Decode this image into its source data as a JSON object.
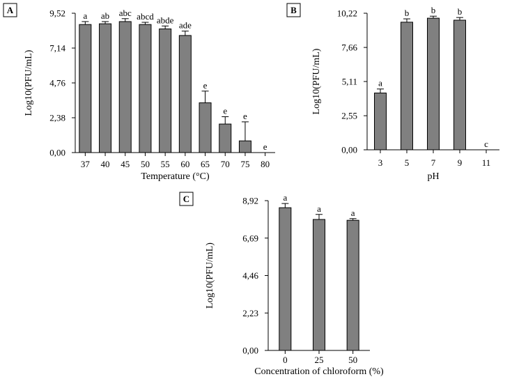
{
  "colors": {
    "bar_fill": "#808080",
    "axis": "#000000",
    "background": "#ffffff"
  },
  "chart_data": [
    {
      "panel": "A",
      "type": "bar",
      "title": "",
      "xlabel": "Temperature (°C)",
      "ylabel": "Log10(PFU/mL)",
      "ylim": [
        0,
        9.52
      ],
      "yticks": [
        "0,00",
        "2,38",
        "4,76",
        "7,14",
        "9,52"
      ],
      "ytick_values": [
        0,
        2.38,
        4.76,
        7.14,
        9.52
      ],
      "categories": [
        "37",
        "40",
        "45",
        "50",
        "55",
        "60",
        "65",
        "70",
        "75",
        "80"
      ],
      "values": [
        8.75,
        8.8,
        8.95,
        8.75,
        8.45,
        8.0,
        3.4,
        1.95,
        0.8,
        0.0
      ],
      "errors": [
        0.2,
        0.15,
        0.2,
        0.15,
        0.2,
        0.3,
        0.8,
        0.5,
        1.3,
        0.0
      ],
      "letters": [
        "a",
        "ab",
        "abc",
        "abcd",
        "abde",
        "ade",
        "e",
        "e",
        "e",
        "e"
      ]
    },
    {
      "panel": "B",
      "type": "bar",
      "title": "",
      "xlabel": "pH",
      "ylabel": "Log10(PFU/mL)",
      "ylim": [
        0,
        10.22
      ],
      "yticks": [
        "0,00",
        "2,55",
        "5,11",
        "7,66",
        "10,22"
      ],
      "ytick_values": [
        0,
        2.55,
        5.11,
        7.66,
        10.22
      ],
      "categories": [
        "3",
        "5",
        "7",
        "9",
        "11"
      ],
      "values": [
        4.25,
        9.55,
        9.85,
        9.7,
        0.0
      ],
      "errors": [
        0.3,
        0.25,
        0.15,
        0.2,
        0.0
      ],
      "letters": [
        "a",
        "b",
        "b",
        "b",
        "c"
      ]
    },
    {
      "panel": "C",
      "type": "bar",
      "title": "",
      "xlabel": "Concentration of chloroform (%)",
      "ylabel": "Log10(PFU/mL)",
      "ylim": [
        0,
        8.92
      ],
      "yticks": [
        "0,00",
        "2,23",
        "4,46",
        "6,69",
        "8,92"
      ],
      "ytick_values": [
        0,
        2.23,
        4.46,
        6.69,
        8.92
      ],
      "categories": [
        "0",
        "25",
        "50"
      ],
      "values": [
        8.5,
        7.8,
        7.75
      ],
      "errors": [
        0.25,
        0.3,
        0.1
      ],
      "letters": [
        "a",
        "a",
        "a"
      ]
    }
  ]
}
